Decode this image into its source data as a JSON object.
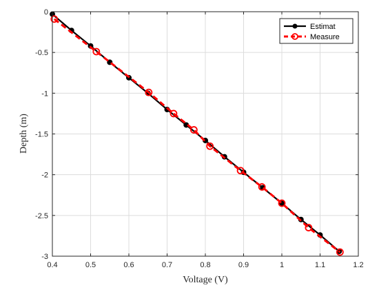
{
  "chart_data": {
    "type": "line",
    "xlabel": "Voltage (V)",
    "ylabel": "Depth (m)",
    "xlim": [
      0.4,
      1.2
    ],
    "ylim": [
      -3,
      0
    ],
    "xticks": [
      0.4,
      0.5,
      0.6,
      0.7,
      0.8,
      0.9,
      1.0,
      1.1,
      1.2
    ],
    "xtick_labels": [
      "0.4",
      "0.5",
      "0.6",
      "0.7",
      "0.8",
      "0.9",
      "1",
      "1.1",
      "1.2"
    ],
    "yticks": [
      0,
      -0.5,
      -1,
      -1.5,
      -2,
      -2.5,
      -3
    ],
    "ytick_labels": [
      "0",
      "-0.5",
      "-1",
      "-1.5",
      "-2",
      "-2.5",
      "-3"
    ],
    "grid": true,
    "legend": "top-right",
    "series": [
      {
        "name": "Estimat",
        "color": "#000000",
        "style": "solid-dot",
        "x": [
          0.4,
          0.45,
          0.5,
          0.55,
          0.6,
          0.65,
          0.7,
          0.75,
          0.8,
          0.85,
          0.9,
          0.95,
          1.0,
          1.05,
          1.1,
          1.15
        ],
        "y": [
          -0.03,
          -0.23,
          -0.42,
          -0.62,
          -0.81,
          -1.0,
          -1.2,
          -1.39,
          -1.58,
          -1.78,
          -1.97,
          -2.16,
          -2.35,
          -2.55,
          -2.74,
          -2.94
        ]
      },
      {
        "name": "Measure",
        "color": "#ff0000",
        "style": "dashed-circle",
        "x": [
          0.405,
          0.515,
          0.652,
          0.717,
          0.77,
          0.812,
          0.892,
          0.948,
          1.0,
          1.07,
          1.152
        ],
        "y": [
          -0.09,
          -0.49,
          -0.99,
          -1.25,
          -1.45,
          -1.65,
          -1.95,
          -2.15,
          -2.35,
          -2.65,
          -2.95
        ]
      }
    ]
  }
}
